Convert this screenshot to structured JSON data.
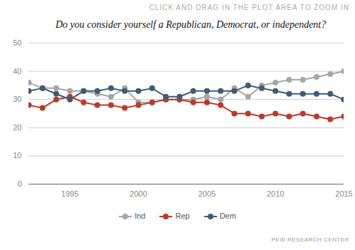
{
  "chart_data": {
    "type": "line",
    "title": "Do you consider yourself a Republican, Democrat, or independent?",
    "annotations": [
      "CLICK AND DRAG IN THE PLOT AREA TO ZOOM IN",
      "PEW RESEARCH CENTER"
    ],
    "x": [
      1992,
      1993,
      1994,
      1995,
      1996,
      1997,
      1998,
      1999,
      2000,
      2001,
      2002,
      2003,
      2004,
      2005,
      2006,
      2007,
      2008,
      2009,
      2010,
      2011,
      2012,
      2013,
      2014,
      2015
    ],
    "series": [
      {
        "name": "Ind",
        "color": "#a6a6a6",
        "values": [
          36,
          34,
          34,
          33,
          33,
          32,
          31,
          34,
          29,
          29,
          30,
          30,
          30,
          31,
          30,
          34,
          31,
          35,
          36,
          37,
          37,
          38,
          39,
          40
        ]
      },
      {
        "name": "Rep",
        "color": "#bb3a2a",
        "values": [
          28,
          27,
          30,
          31,
          29,
          28,
          28,
          27,
          28,
          29,
          30,
          30,
          29,
          29,
          28,
          25,
          25,
          24,
          25,
          24,
          25,
          24,
          23,
          24
        ]
      },
      {
        "name": "Dem",
        "color": "#3e5b78",
        "values": [
          33,
          34,
          32,
          30,
          33,
          33,
          34,
          33,
          33,
          34,
          31,
          31,
          33,
          33,
          33,
          33,
          35,
          34,
          33,
          32,
          32,
          32,
          32,
          30
        ]
      }
    ],
    "xlim": [
      1992,
      2015
    ],
    "xticks": [
      1995,
      2000,
      2005,
      2010,
      2015
    ],
    "ylim": [
      0,
      50
    ],
    "yticks": [
      0,
      10,
      20,
      30,
      40,
      50
    ],
    "grid": true,
    "marker": "circle",
    "legend": "bottom"
  }
}
